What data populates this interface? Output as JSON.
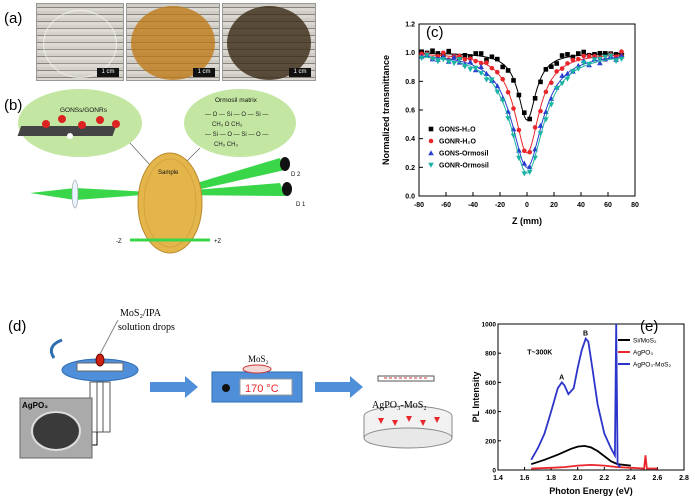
{
  "panels": {
    "a": "(a)",
    "b": "(b)",
    "c": "(c)",
    "d": "(d)",
    "e": "(e)"
  },
  "panel_a": {
    "scale_labels": [
      "1 cm",
      "1 cm",
      "1 cm"
    ]
  },
  "panel_b": {
    "gons_label": "GONSs/GONRs",
    "ormosil_label": "Ormosil matrix",
    "sample_label": "Sample",
    "lens_label": "Lens",
    "laser_label": "Laser",
    "d2_label": "D 2",
    "d1_label": "D 1",
    "minus_z": "-Z",
    "plus_z": "+Z",
    "chem_rows": [
      "— O — Si — O — Si —",
      "CH₃    O    CH₃",
      "— Si — O — Si — O —",
      "CH₃       CH₃"
    ]
  },
  "panel_d": {
    "mos2_ipa": "MoS₂/IPA",
    "solution_drops": "solution drops",
    "mos2": "MoS₂",
    "temp": "170 °C",
    "agpo3": "AgPO₃",
    "agpo3_mos2": "AgPO₃-MoS₂"
  },
  "chart_data": [
    {
      "type": "scatter",
      "panel": "c",
      "xlabel": "Z (mm)",
      "ylabel": "Normalized transmittance",
      "xlim": [
        -80,
        80
      ],
      "ylim": [
        0.0,
        1.2
      ],
      "xticks": [
        "-80",
        "-60",
        "-40",
        "-20",
        "0",
        "20",
        "40",
        "60",
        "80"
      ],
      "yticks": [
        "0.0",
        "0.2",
        "0.4",
        "0.6",
        "0.8",
        "1.0",
        "1.2"
      ],
      "legend_position": "lower-left",
      "series": [
        {
          "name": "GONS-H₂O",
          "color": "#000000",
          "marker": "square",
          "min": 0.53,
          "width": 8
        },
        {
          "name": "GONR-H₂O",
          "color": "#e8262b",
          "marker": "circle",
          "min": 0.3,
          "width": 11
        },
        {
          "name": "GONS-Ormosil",
          "color": "#2a3fd0",
          "marker": "triangle",
          "min": 0.2,
          "width": 14
        },
        {
          "name": "GONR-Ormosil",
          "color": "#19b3a3",
          "marker": "triangle-down",
          "min": 0.16,
          "width": 15
        }
      ]
    },
    {
      "type": "line",
      "panel": "e",
      "xlabel": "Photon Energy (eV)",
      "ylabel": "PL Intensity",
      "xlim": [
        1.4,
        2.8
      ],
      "ylim": [
        0,
        1000
      ],
      "xticks": [
        "1.4",
        "1.6",
        "1.8",
        "2.0",
        "2.2",
        "2.4",
        "2.6",
        "2.8"
      ],
      "yticks": [
        "0",
        "200",
        "400",
        "600",
        "800",
        "1000"
      ],
      "annotation_temp": "T~300K",
      "peak_a": "A",
      "peak_b": "B",
      "legend_position": "top-right",
      "series": [
        {
          "name": "Si/MoS₂",
          "color": "#000000",
          "x": [
            1.65,
            1.75,
            1.85,
            1.95,
            2.0,
            2.05,
            2.1,
            2.15,
            2.2,
            2.25,
            2.3,
            2.4
          ],
          "y": [
            40,
            70,
            105,
            145,
            160,
            165,
            155,
            130,
            95,
            60,
            40,
            30
          ]
        },
        {
          "name": "AgPO₃",
          "color": "#e8262b",
          "x": [
            1.65,
            1.8,
            1.9,
            2.0,
            2.1,
            2.2,
            2.3,
            2.4,
            2.5,
            2.51,
            2.52,
            2.53,
            2.6
          ],
          "y": [
            10,
            15,
            20,
            30,
            35,
            30,
            20,
            15,
            10,
            100,
            10,
            10,
            10
          ]
        },
        {
          "name": "AgPO₃-MoS₂",
          "color": "#2c35c9",
          "x": [
            1.65,
            1.7,
            1.75,
            1.8,
            1.85,
            1.88,
            1.9,
            1.93,
            1.97,
            2.0,
            2.03,
            2.06,
            2.08,
            2.11,
            2.15,
            2.2,
            2.25,
            2.28,
            2.29,
            2.3,
            2.32
          ],
          "y": [
            70,
            150,
            250,
            400,
            560,
            600,
            580,
            520,
            560,
            700,
            820,
            900,
            880,
            700,
            450,
            250,
            150,
            100,
            1000,
            40,
            20
          ]
        }
      ]
    }
  ],
  "colors": {
    "beam_green": "#39d64a",
    "arrow_blue": "#4f8fd9",
    "bubble_green": "#c3e7a2",
    "disk_gold": "#e3b54a"
  }
}
